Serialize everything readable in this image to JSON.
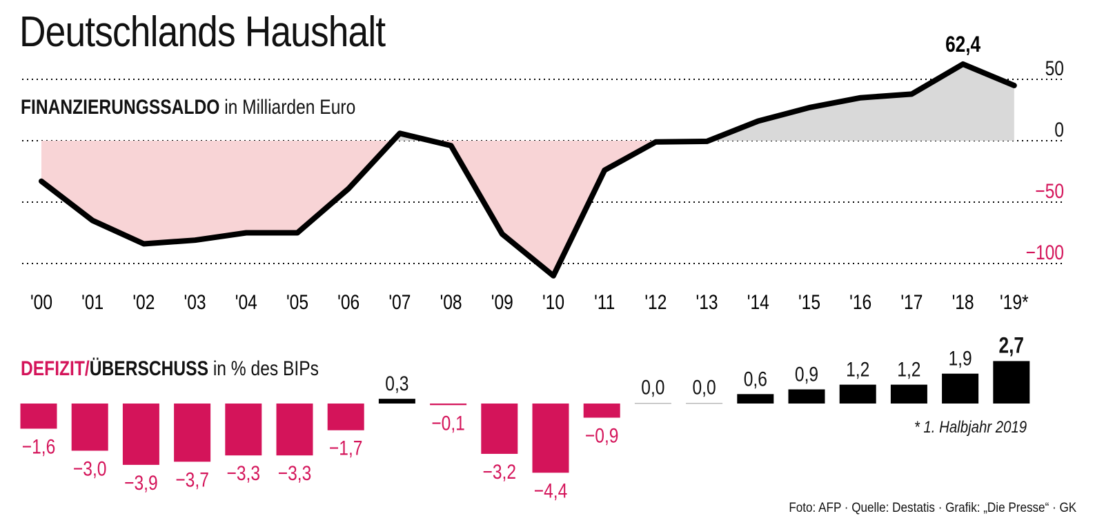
{
  "title": "Deutschlands Haushalt",
  "subtitle1": {
    "bold": "FINANZIERUNGSSALDO",
    "rest": " in Milliarden Euro"
  },
  "subtitle2": {
    "bold_pink": "DEFIZIT/",
    "bold": "ÜBERSCHUSS",
    "rest": " in % des BIPs"
  },
  "footnote": "* 1. Halbjahr 2019",
  "footer": "Foto: AFP · Quelle: Destatis · Grafik: „Die Presse“ · GK",
  "colors": {
    "deficit": "#d4145a",
    "deficit_fill": "#f8d4d6",
    "surplus_fill": "#d9d9d9",
    "line": "#000000"
  },
  "chart_data": [
    {
      "type": "area",
      "title": "FINANZIERUNGSSALDO in Milliarden Euro",
      "x": [
        "'00",
        "'01",
        "'02",
        "'03",
        "'04",
        "'05",
        "'06",
        "'07",
        "'08",
        "'09",
        "'10",
        "'11",
        "'12",
        "'13",
        "'14",
        "'15",
        "'16",
        "'17",
        "'18",
        "'19*"
      ],
      "values": [
        -33,
        -65,
        -84,
        -81,
        -75,
        -75,
        -39,
        6,
        -4,
        -76,
        -110,
        -24,
        -1,
        -0.5,
        16,
        27,
        35,
        38,
        62.4,
        45
      ],
      "y_ticks": [
        "50",
        "0",
        "−50",
        "−100"
      ],
      "y_tick_values": [
        50,
        0,
        -50,
        -100
      ],
      "ylim": [
        -115,
        65
      ],
      "annotation": "62,4",
      "grid": "dotted"
    },
    {
      "type": "bar",
      "title": "DEFIZIT/ÜBERSCHUSS in % des BIPs",
      "categories": [
        "'00",
        "'01",
        "'02",
        "'03",
        "'04",
        "'05",
        "'06",
        "'07",
        "'08",
        "'09",
        "'10",
        "'11",
        "'12",
        "'13",
        "'14",
        "'15",
        "'16",
        "'17",
        "'18",
        "'19*"
      ],
      "values": [
        -1.6,
        -3.0,
        -3.9,
        -3.7,
        -3.3,
        -3.3,
        -1.7,
        0.3,
        -0.1,
        -3.2,
        -4.4,
        -0.9,
        0.0,
        0.0,
        0.6,
        0.9,
        1.2,
        1.2,
        1.9,
        2.7
      ],
      "labels": [
        "−1,6",
        "−3,0",
        "−3,9",
        "−3,7",
        "−3,3",
        "−3,3",
        "−1,7",
        "0,3",
        "−0,1",
        "−3,2",
        "−4,4",
        "−0,9",
        "0,0",
        "0,0",
        "0,6",
        "0,9",
        "1,2",
        "1,2",
        "1,9",
        "2,7"
      ]
    }
  ]
}
